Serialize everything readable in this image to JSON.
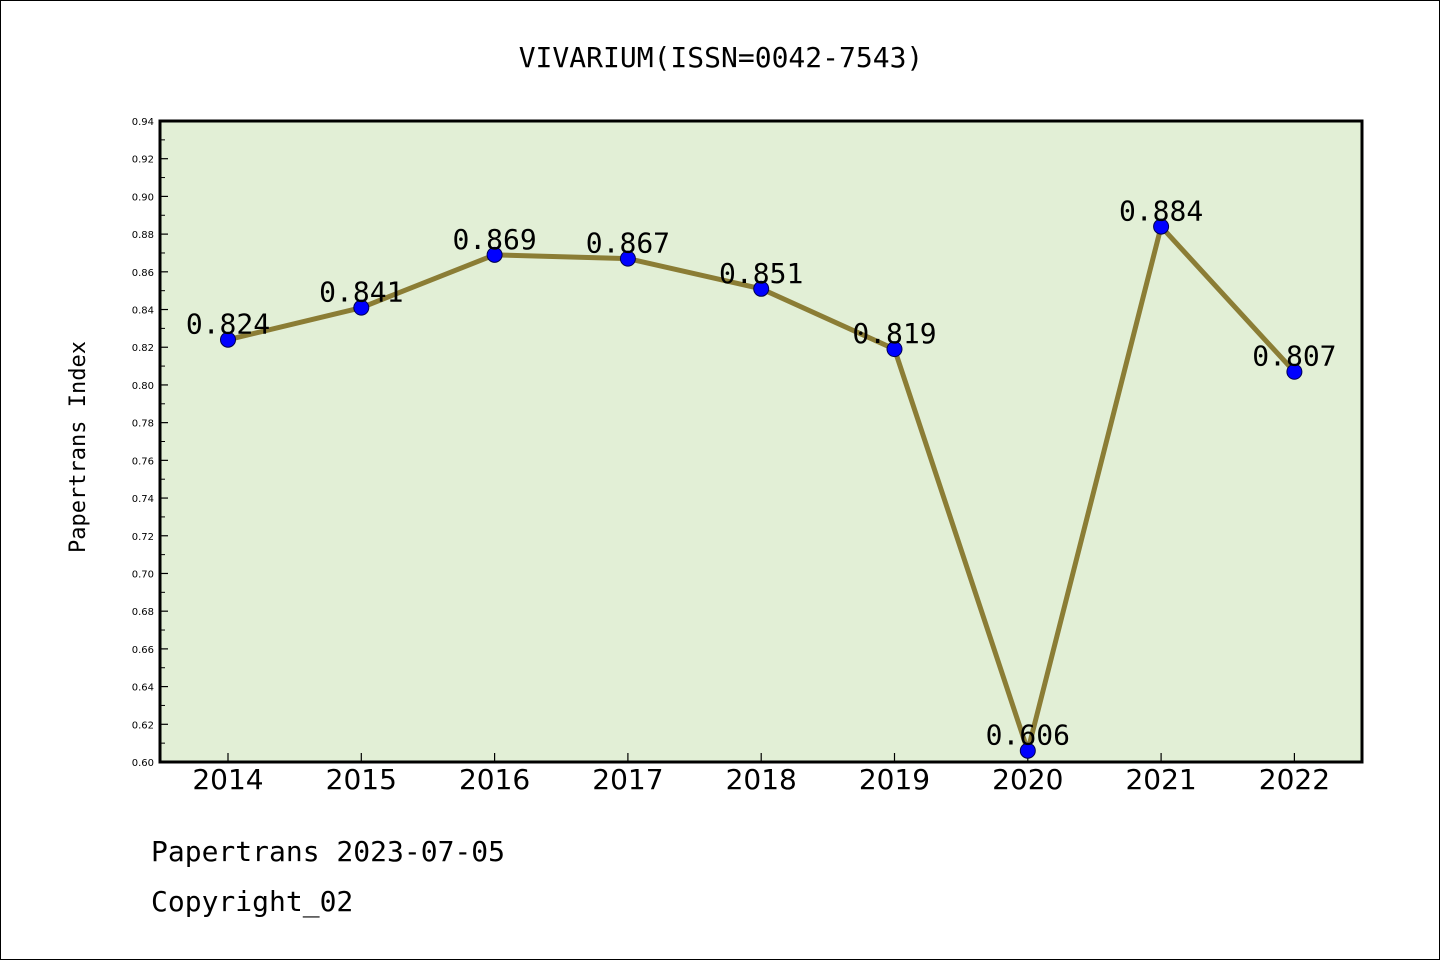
{
  "chart_data": {
    "type": "line",
    "title": "VIVARIUM(ISSN=0042-7543)",
    "xlabel": "",
    "ylabel": "Papertrans Index",
    "categories": [
      "2014",
      "2015",
      "2016",
      "2017",
      "2018",
      "2019",
      "2020",
      "2021",
      "2022"
    ],
    "values": [
      0.824,
      0.841,
      0.869,
      0.867,
      0.851,
      0.819,
      0.606,
      0.884,
      0.807
    ],
    "data_labels": [
      "0.824",
      "0.841",
      "0.869",
      "0.867",
      "0.851",
      "0.819",
      "0.606",
      "0.884",
      "0.807"
    ],
    "ylim": [
      0.6,
      0.94
    ],
    "yticks": [
      "0.60",
      "0.62",
      "0.64",
      "0.66",
      "0.68",
      "0.70",
      "0.72",
      "0.74",
      "0.76",
      "0.78",
      "0.80",
      "0.82",
      "0.84",
      "0.86",
      "0.88",
      "0.90",
      "0.92",
      "0.94"
    ],
    "grid": false,
    "colors": {
      "plot_background": "#e2efd6",
      "line": "#8b7d35",
      "marker": "#0000ff"
    }
  },
  "footer": {
    "date_text": "Papertrans 2023-07-05",
    "copyright_text": "Copyright_02"
  }
}
